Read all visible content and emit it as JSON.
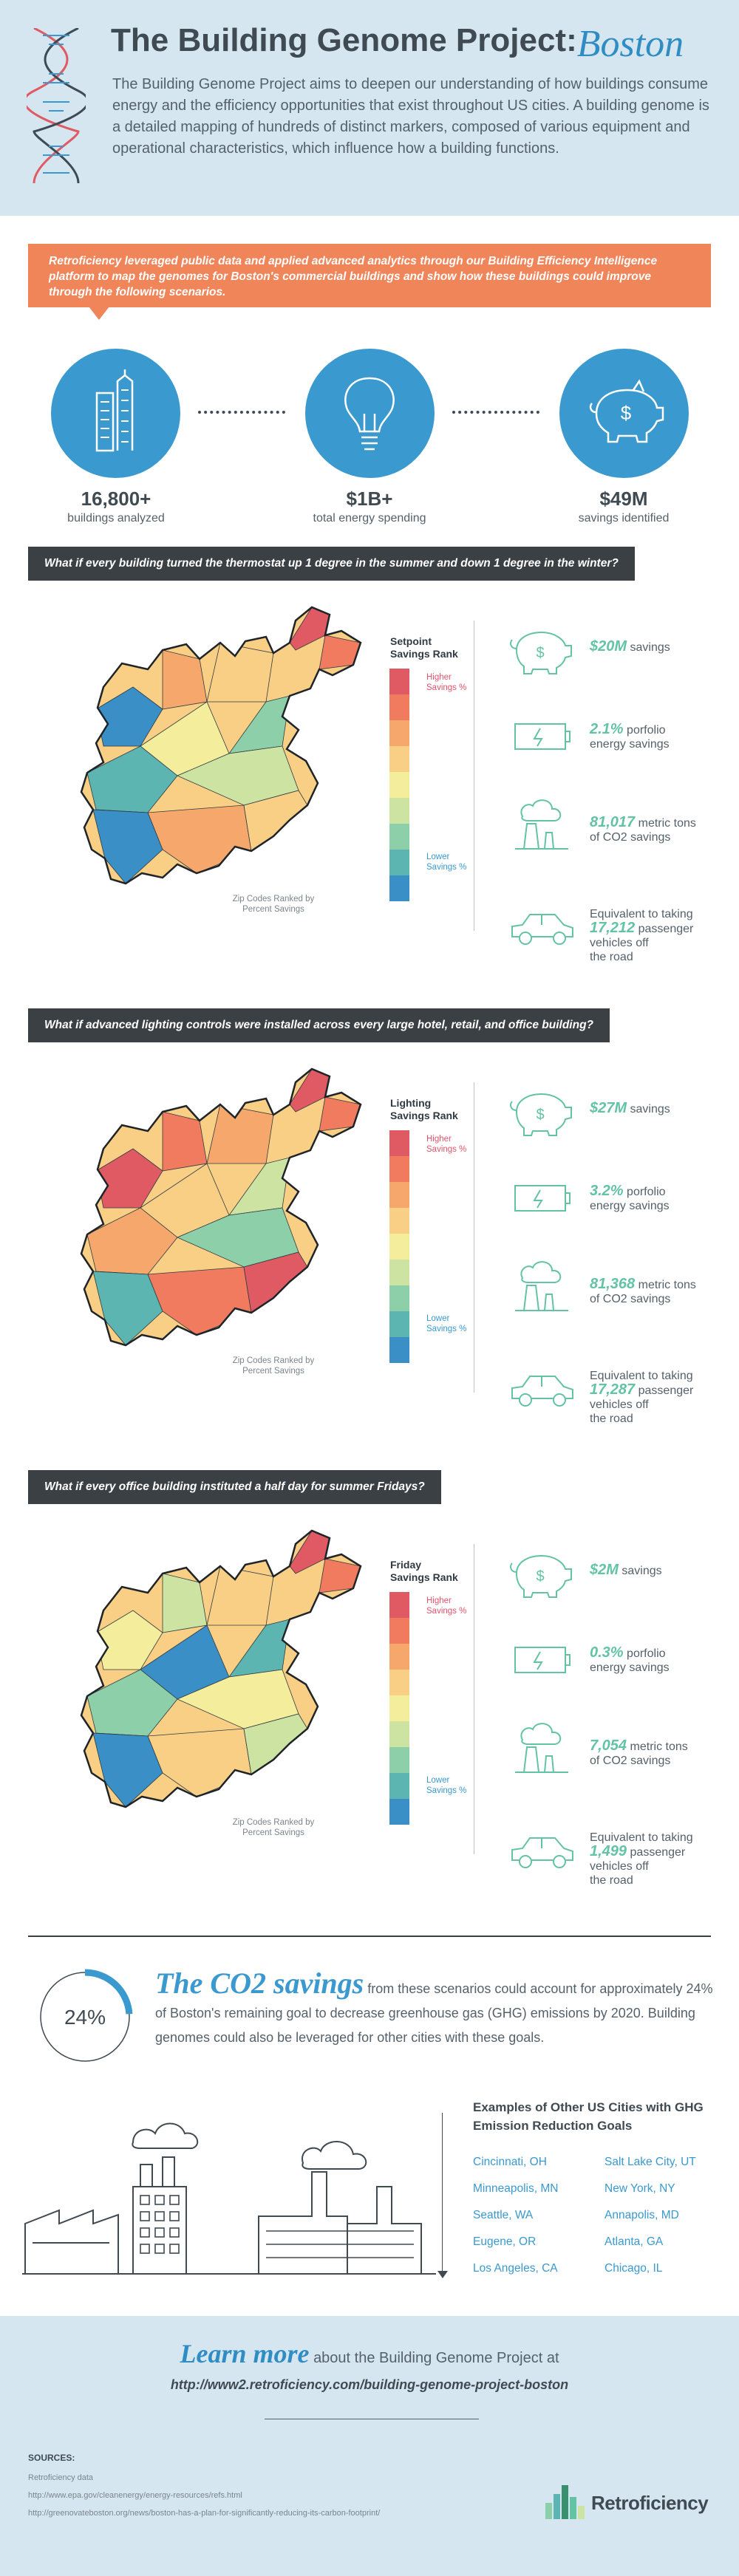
{
  "header": {
    "title": "The Building Genome Project:",
    "city": "Boston",
    "intro": "The Building Genome Project aims to deepen our understanding of how buildings consume energy and the efficiency opportunities that exist throughout US cities. A building genome is a detailed mapping of hundreds of distinct markers, composed of various equipment and operational characteristics, which influence how a building functions."
  },
  "banner": {
    "text": "Retroficiency leveraged public data and applied advanced analytics through our Building Efficiency Intelligence platform to map the genomes for Boston's commercial buildings and show how these buildings could improve through the following scenarios."
  },
  "stats": [
    {
      "value": "16,800+",
      "label": "buildings analyzed",
      "icon": "buildings-icon"
    },
    {
      "value": "$1B+",
      "label": "total energy spending",
      "icon": "lightbulb-icon"
    },
    {
      "value": "$49M",
      "label": "savings identified",
      "icon": "piggy-bank-icon"
    }
  ],
  "scale_colors": [
    "#e05a63",
    "#f07b5e",
    "#f6a86c",
    "#f8cf85",
    "#f4ee9c",
    "#cde3a2",
    "#8ccfa8",
    "#5cb5b0",
    "#3a8fc6"
  ],
  "scale_labels": {
    "higher": "Higher Savings %",
    "lower": "Lower Savings %",
    "zip": "Zip Codes Ranked by Percent Savings"
  },
  "scenarios": [
    {
      "question": "What if every building turned the thermostat up 1 degree in the summer and down 1 degree in the winter?",
      "rank_title_1": "Setpoint",
      "rank_title_2": "Savings Rank",
      "savings_value": "$20M",
      "savings_word": "savings",
      "portfolio_value": "2.1%",
      "portfolio_word": "porfolio",
      "portfolio_line2": "energy savings",
      "co2_value": "81,017",
      "co2_word": "metric tons",
      "co2_line2": "of CO2 savings",
      "vehicles_pre": "Equivalent to taking",
      "vehicles_value": "17,212",
      "vehicles_word": "passenger",
      "vehicles_line3": "vehicles off",
      "vehicles_line4": "the road"
    },
    {
      "question": "What if advanced lighting controls were installed across every large hotel, retail, and office building?",
      "rank_title_1": "Lighting",
      "rank_title_2": "Savings Rank",
      "savings_value": "$27M",
      "savings_word": "savings",
      "portfolio_value": "3.2%",
      "portfolio_word": "porfolio",
      "portfolio_line2": "energy savings",
      "co2_value": "81,368",
      "co2_word": "metric tons",
      "co2_line2": "of CO2 savings",
      "vehicles_pre": "Equivalent to taking",
      "vehicles_value": "17,287",
      "vehicles_word": "passenger",
      "vehicles_line3": "vehicles off",
      "vehicles_line4": "the road"
    },
    {
      "question": "What if every office building instituted a half day for summer Fridays?",
      "rank_title_1": "Friday",
      "rank_title_2": "Savings Rank",
      "savings_value": "$2M",
      "savings_word": "savings",
      "portfolio_value": "0.3%",
      "portfolio_word": "porfolio",
      "portfolio_line2": "energy savings",
      "co2_value": "7,054",
      "co2_word": "metric tons",
      "co2_line2": "of CO2 savings",
      "vehicles_pre": "Equivalent to taking",
      "vehicles_value": "1,499",
      "vehicles_word": "passenger",
      "vehicles_line3": "vehicles off",
      "vehicles_line4": "the road"
    }
  ],
  "co2": {
    "percent": "24%",
    "percent_fraction": 0.24,
    "headline": "The CO2 savings",
    "text": "from these scenarios could account for approximately 24% of Boston's remaining goal to decrease greenhouse gas (GHG) emissions by 2020. Building genomes could also be leveraged for other cities with these goals."
  },
  "cities": {
    "title": "Examples of Other US Cities with GHG Emission Reduction Goals",
    "left": [
      "Cincinnati, OH",
      "Minneapolis, MN",
      "Seattle, WA",
      "Eugene, OR",
      "Los Angeles, CA"
    ],
    "right": [
      "Salt Lake City, UT",
      "New York, NY",
      "Annapolis, MD",
      "Atlanta, GA",
      "Chicago, IL"
    ]
  },
  "learn_more": {
    "big": "Learn more",
    "rest": "about the Building Genome Project at",
    "url": "http://www2.retroficiency.com/building-genome-project-boston"
  },
  "sources": {
    "heading": "SOURCES:",
    "items": [
      "Retroficiency data",
      "http://www.epa.gov/cleanenergy/energy-resources/refs.html",
      "http://greenovateboston.org/news/boston-has-a-plan-for-significantly-reducing-its-carbon-footprint/"
    ]
  },
  "logo": {
    "text": "Retroficiency"
  }
}
